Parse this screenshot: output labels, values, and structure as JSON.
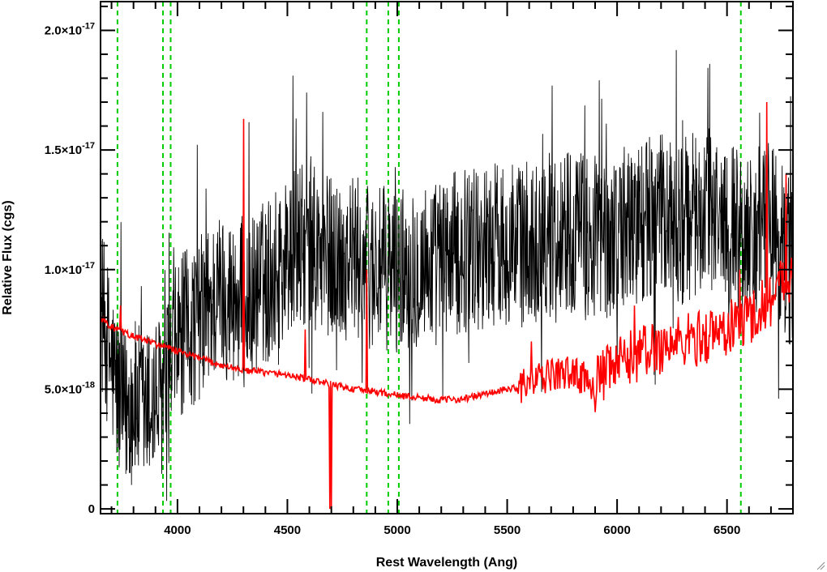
{
  "chart_data": {
    "type": "line",
    "title": "",
    "xlabel": "Rest Wavelength (Ang)",
    "ylabel": "Relative Flux (cgs)",
    "xlim": [
      3650,
      6800
    ],
    "ylim": [
      -2e-19,
      2.12e-17
    ],
    "x_ticks": [
      {
        "value": 4000,
        "label": "4000"
      },
      {
        "value": 4500,
        "label": "4500"
      },
      {
        "value": 5000,
        "label": "5000"
      },
      {
        "value": 5500,
        "label": "5500"
      },
      {
        "value": 6000,
        "label": "6000"
      },
      {
        "value": 6500,
        "label": "6500"
      }
    ],
    "y_ticks": [
      {
        "value": 0,
        "mantissa": "0",
        "exponent": ""
      },
      {
        "value": 5e-18,
        "mantissa": "5.0×10",
        "exponent": "-18"
      },
      {
        "value": 1e-17,
        "mantissa": "1.0×10",
        "exponent": "-17"
      },
      {
        "value": 1.5e-17,
        "mantissa": "1.5×10",
        "exponent": "-17"
      },
      {
        "value": 2e-17,
        "mantissa": "2.0×10",
        "exponent": "-17"
      }
    ],
    "x_minor_step": 100,
    "y_minor_step": 1e-18,
    "grid": false,
    "legend": "none",
    "reference_lines": {
      "color": "#00cc00",
      "style": "dashed",
      "x": [
        3727,
        3934,
        3969,
        4861,
        4959,
        5007,
        6563
      ]
    },
    "series": [
      {
        "color": "#000000",
        "style": "noisy spectrum",
        "x": [
          3650,
          3700,
          3750,
          3800,
          3850,
          3900,
          3950,
          4000,
          4100,
          4200,
          4300,
          4400,
          4500,
          4550,
          4600,
          4700,
          4800,
          4900,
          5000,
          5100,
          5200,
          5300,
          5400,
          5500,
          5600,
          5700,
          5800,
          5900,
          6000,
          6100,
          6200,
          6300,
          6400,
          6500,
          6600,
          6700,
          6800
        ],
        "y": [
          8.5e-18,
          6e-18,
          4e-18,
          4.5e-18,
          4e-18,
          4.5e-18,
          5e-18,
          7e-18,
          8e-18,
          9e-18,
          8.5e-18,
          9.5e-18,
          1.05e-17,
          1.1e-17,
          1.08e-17,
          1.05e-17,
          1.05e-17,
          1e-17,
          1e-17,
          1.02e-17,
          1.03e-17,
          1.08e-17,
          1.1e-17,
          1.12e-17,
          1.1e-17,
          1.15e-17,
          1.18e-17,
          1.1e-17,
          1.15e-17,
          1.2e-17,
          1.22e-17,
          1.2e-17,
          1.25e-17,
          1.2e-17,
          1.15e-17,
          1.2e-17,
          1e-17
        ],
        "noise_amplitude": 3.5e-18
      },
      {
        "color": "#ff0000",
        "style": "error spectrum",
        "x": [
          3650,
          3700,
          3800,
          3900,
          4000,
          4100,
          4200,
          4300,
          4400,
          4500,
          4600,
          4700,
          4800,
          4900,
          5000,
          5100,
          5200,
          5300,
          5400,
          5500,
          5600,
          5700,
          5800,
          5900,
          6000,
          6100,
          6200,
          6300,
          6400,
          6500,
          6600,
          6700,
          6750,
          6800
        ],
        "y": [
          8e-18,
          7.6e-18,
          7.2e-18,
          6.9e-18,
          6.6e-18,
          6.3e-18,
          6e-18,
          5.8e-18,
          5.7e-18,
          5.6e-18,
          5.4e-18,
          5.2e-18,
          5e-18,
          4.9e-18,
          4.75e-18,
          4.65e-18,
          4.55e-18,
          4.6e-18,
          4.8e-18,
          5e-18,
          5.2e-18,
          5.6e-18,
          5.7e-18,
          5.2e-18,
          6e-18,
          6.5e-18,
          6.8e-18,
          7e-18,
          7.2e-18,
          7.5e-18,
          8e-18,
          8.8e-18,
          9.5e-18,
          1e-17
        ],
        "spikes": [
          {
            "x": 3740,
            "y": 8.5e-18
          },
          {
            "x": 4302,
            "y": 1.63e-17
          },
          {
            "x": 4580,
            "y": 7.5e-18
          },
          {
            "x": 4692,
            "y": 0
          },
          {
            "x": 4700,
            "y": 0
          },
          {
            "x": 4862,
            "y": 1e-17
          },
          {
            "x": 5610,
            "y": 7e-18
          },
          {
            "x": 6080,
            "y": 8.5e-18
          },
          {
            "x": 6560,
            "y": 1e-17
          },
          {
            "x": 6680,
            "y": 1.7e-17
          },
          {
            "x": 6770,
            "y": 1.4e-17
          }
        ],
        "noise_amplitude": 1.2e-18
      }
    ]
  }
}
